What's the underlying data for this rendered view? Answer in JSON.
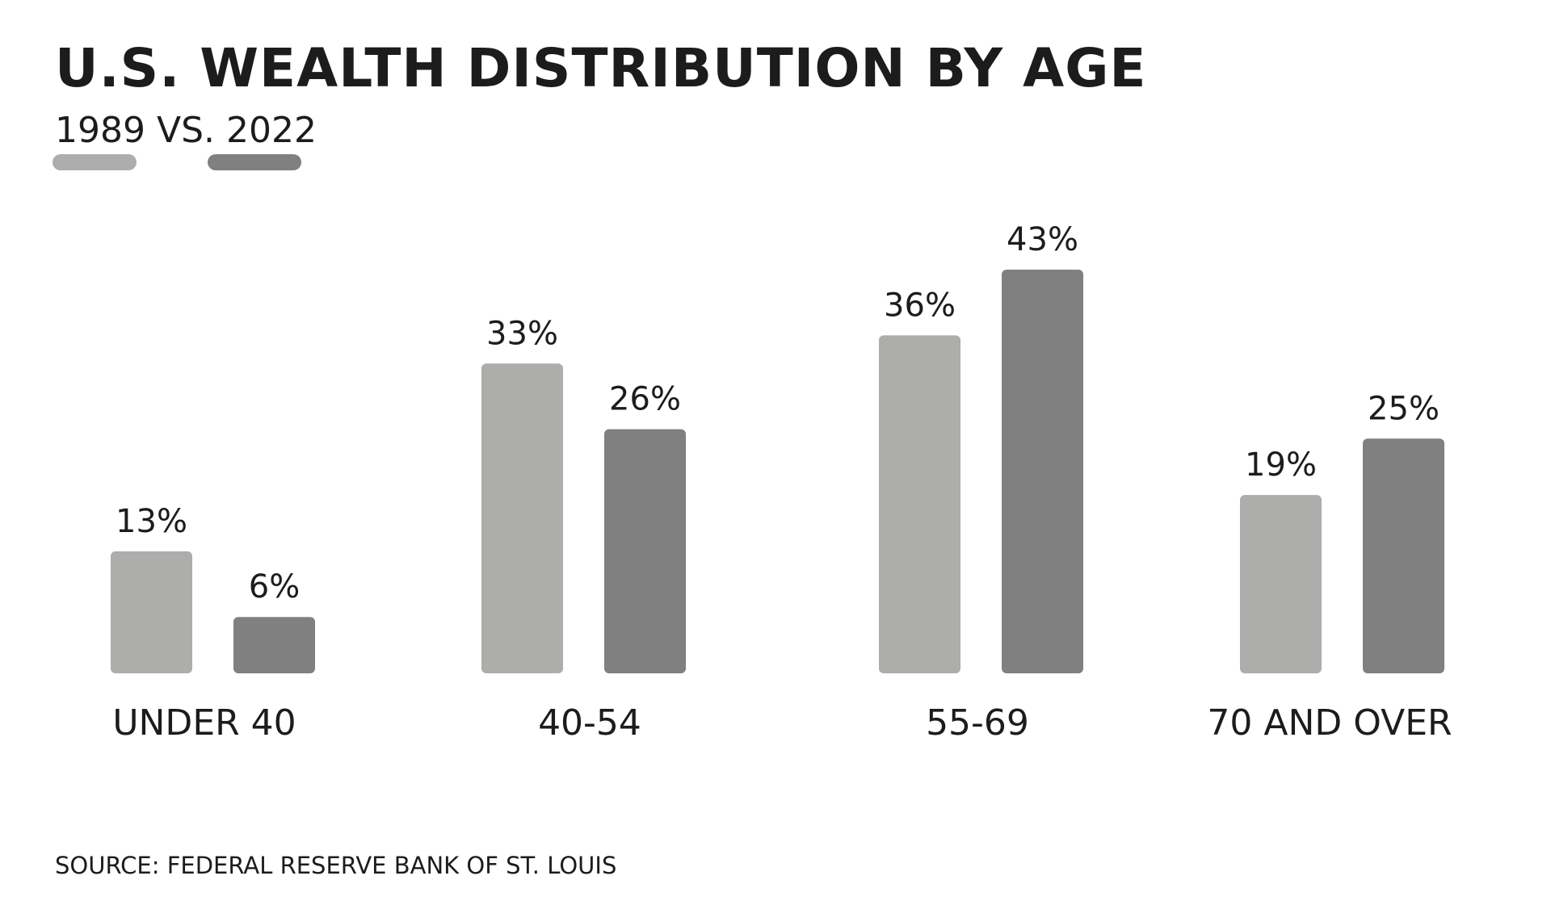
{
  "header": {
    "title": "U.S. WEALTH DISTRIBUTION BY AGE",
    "subtitle": "1989 VS. 2022"
  },
  "source": "SOURCE: FEDERAL RESERVE BANK OF ST. LOUIS",
  "colors": {
    "series_1989": "#adadab",
    "series_2022": "#808080",
    "text": "#1c1c1c"
  },
  "chart_data": {
    "type": "bar",
    "title": "U.S. WEALTH DISTRIBUTION BY AGE",
    "subtitle": "1989 VS. 2022",
    "categories": [
      "UNDER 40",
      "40-54",
      "55-69",
      "70 AND OVER"
    ],
    "series": [
      {
        "name": "1989",
        "values": [
          13,
          33,
          36,
          19
        ],
        "labels": [
          "13%",
          "33%",
          "36%",
          "19%"
        ]
      },
      {
        "name": "2022",
        "values": [
          6,
          26,
          43,
          25
        ],
        "labels": [
          "6%",
          "26%",
          "43%",
          "25%"
        ]
      }
    ],
    "unit": "%",
    "ylim": [
      0,
      43
    ],
    "grid": false,
    "legend": "below-subtitle"
  }
}
